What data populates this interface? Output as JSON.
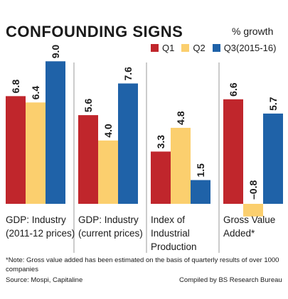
{
  "header": {
    "title": "CONFOUNDING SIGNS",
    "unit": "% growth"
  },
  "legend": [
    {
      "label": "Q1",
      "color": "#c0262c"
    },
    {
      "label": "Q2",
      "color": "#fbcf6e"
    },
    {
      "label": "Q3(2015-16)",
      "color": "#1f62a8"
    }
  ],
  "chart_data": {
    "type": "bar",
    "categories": [
      [
        "GDP: Industry",
        "(2011-12 prices)"
      ],
      [
        "GDP: Industry",
        "(current prices)"
      ],
      [
        "Index of",
        "Industrial",
        "Production"
      ],
      [
        "Gross Value",
        "Added*"
      ]
    ],
    "series": [
      {
        "name": "Q1",
        "color": "#c0262c",
        "values": [
          6.8,
          5.6,
          3.3,
          6.6
        ]
      },
      {
        "name": "Q2",
        "color": "#fbcf6e",
        "values": [
          6.4,
          4.0,
          4.8,
          -0.8
        ]
      },
      {
        "name": "Q3(2015-16)",
        "color": "#1f62a8",
        "values": [
          9.0,
          7.6,
          1.5,
          5.7
        ]
      }
    ],
    "value_labels": [
      [
        "6.8",
        "6.4",
        "9.0"
      ],
      [
        "5.6",
        "4.0",
        "7.6"
      ],
      [
        "3.3",
        "4.8",
        "1.5"
      ],
      [
        "6.6",
        "–0.8",
        "5.7"
      ]
    ],
    "ylim": [
      -0.8,
      9.0
    ],
    "grid": false
  },
  "footer": {
    "note": "*Note: Gross value added has been estimated on the basis of quarterly results of over 1000 companies",
    "source": "Source: Mospi, Capitaline",
    "credit": "Compiled by BS Research Bureau"
  }
}
